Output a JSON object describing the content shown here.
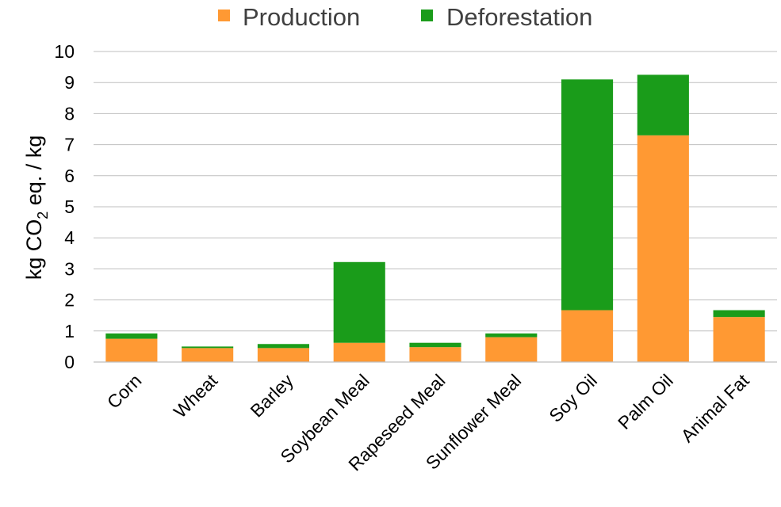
{
  "chart_data": {
    "type": "bar",
    "stacked": true,
    "title": "",
    "xlabel": "",
    "ylabel": {
      "prefix": "kg CO",
      "subscript": "2",
      "suffix": " eq. / kg"
    },
    "ylim": [
      0,
      10
    ],
    "yticks": [
      0,
      1,
      2,
      3,
      4,
      5,
      6,
      7,
      8,
      9,
      10
    ],
    "grid": true,
    "legend": "top-center",
    "categories": [
      "Corn",
      "Wheat",
      "Barley",
      "Soybean Meal",
      "Rapeseed Meal",
      "Sunflower Meal",
      "Soy Oil",
      "Palm Oil",
      "Animal Fat"
    ],
    "series": [
      {
        "name": "Production",
        "color": "#ff9933",
        "values": [
          0.75,
          0.45,
          0.45,
          0.62,
          0.48,
          0.8,
          1.67,
          7.3,
          1.45
        ]
      },
      {
        "name": "Deforestation",
        "color": "#1a9c1a",
        "values": [
          0.17,
          0.05,
          0.13,
          2.6,
          0.14,
          0.12,
          7.43,
          1.95,
          0.22
        ]
      }
    ]
  }
}
